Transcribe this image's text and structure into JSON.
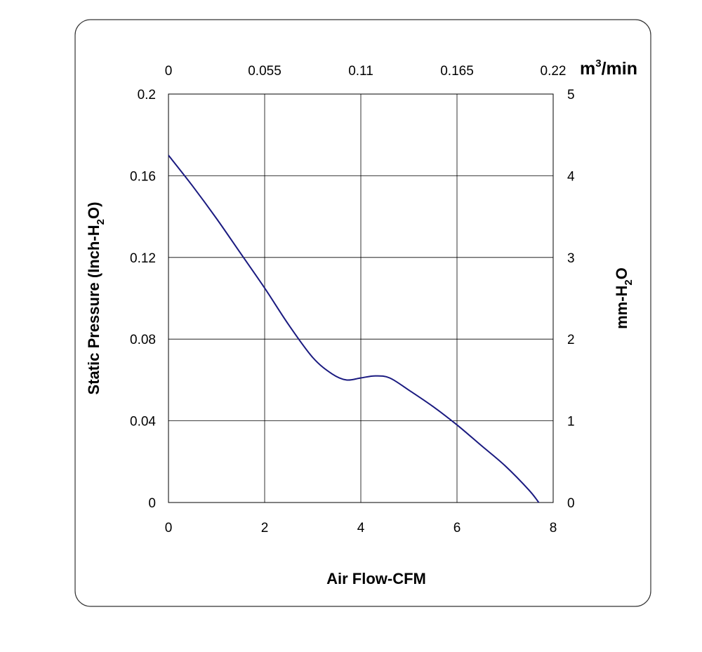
{
  "chart_data": {
    "type": "line",
    "xlabel": "Air Flow-CFM",
    "ylabel": "Static Pressure (Inch-H",
    "ylabel_sub": "2",
    "ylabel_tail": "O)",
    "y2label": "mm-H",
    "y2label_sub": "2",
    "y2label_tail": "O",
    "x2label": "m",
    "x2label_sup": "3",
    "x2label_tail": "/min",
    "xlim": [
      0,
      8
    ],
    "ylim": [
      0,
      0.2
    ],
    "x_ticks": [
      "0",
      "2",
      "4",
      "6",
      "8"
    ],
    "y_ticks": [
      "0",
      "0.04",
      "0.08",
      "0.12",
      "0.16",
      "0.2"
    ],
    "x2_ticks": [
      "0",
      "0.055",
      "0.11",
      "0.165",
      "0.22"
    ],
    "y2_ticks": [
      "0",
      "1",
      "2",
      "3",
      "4",
      "5"
    ],
    "grid": true,
    "series": [
      {
        "color": "#1a1a80",
        "x": [
          0,
          0.5,
          1.0,
          1.5,
          2.0,
          2.5,
          3.0,
          3.4,
          3.7,
          4.0,
          4.3,
          4.6,
          5.0,
          5.5,
          6.0,
          6.5,
          7.0,
          7.5,
          7.7
        ],
        "y": [
          0.17,
          0.155,
          0.139,
          0.122,
          0.105,
          0.087,
          0.071,
          0.063,
          0.06,
          0.061,
          0.062,
          0.061,
          0.055,
          0.047,
          0.038,
          0.028,
          0.018,
          0.006,
          0.0
        ]
      }
    ]
  }
}
